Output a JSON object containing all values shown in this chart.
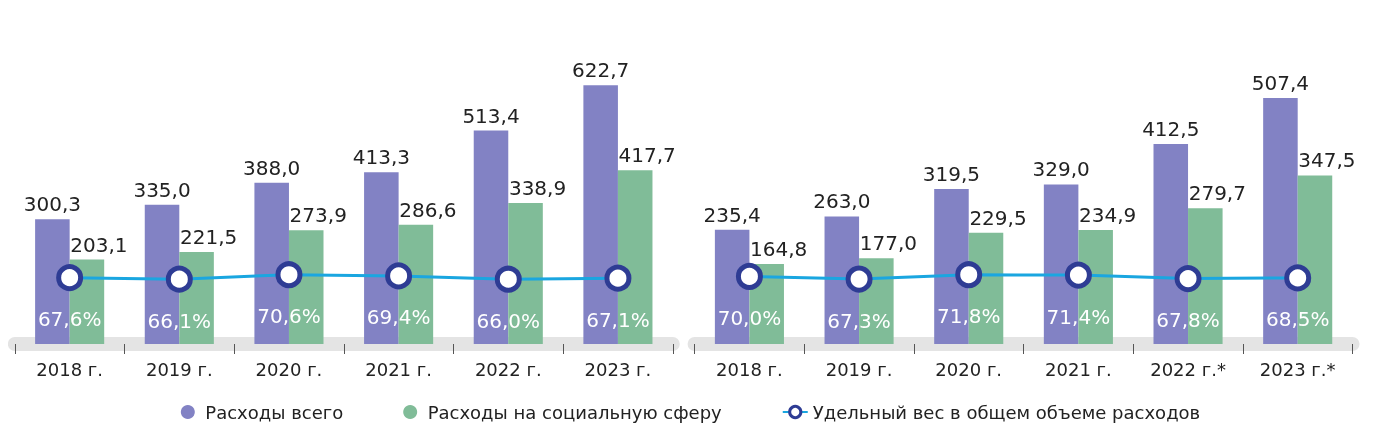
{
  "chart_data": [
    {
      "type": "bar",
      "categories": [
        "2018 г.",
        "2019 г.",
        "2020 г.",
        "2021 г.",
        "2022 г.",
        "2023 г."
      ],
      "series": [
        {
          "name": "Расходы всего",
          "color": "#8282c4",
          "values": [
            300.3,
            335.0,
            388.0,
            413.3,
            513.4,
            622.7
          ],
          "value_labels": [
            "300,3",
            "335,0",
            "388,0",
            "413,3",
            "513,4",
            "622,7"
          ]
        },
        {
          "name": "Расходы на социальную сферу",
          "color": "#80bc98",
          "values": [
            203.1,
            221.5,
            273.9,
            286.6,
            338.9,
            417.7
          ],
          "value_labels": [
            "203,1",
            "221,5",
            "273,9",
            "286,6",
            "338,9",
            "417,7"
          ]
        },
        {
          "name": "Удельный вес в общем объеме расходов",
          "type": "line",
          "axis": "y2",
          "color": "#1aa6e0",
          "values": [
            67.6,
            66.1,
            70.6,
            69.4,
            66.0,
            67.1
          ],
          "value_labels": [
            "67,6%",
            "66,1%",
            "70,6%",
            "69,4%",
            "66,0%",
            "67,1%"
          ]
        }
      ],
      "marker": "circle",
      "legend": "bottom"
    },
    {
      "type": "bar",
      "categories": [
        "2018 г.",
        "2019 г.",
        "2020 г.",
        "2021 г.",
        "2022 г.*",
        "2023 г.*"
      ],
      "series": [
        {
          "name": "Расходы всего",
          "color": "#8282c4",
          "values": [
            235.4,
            263.0,
            319.5,
            329.0,
            412.5,
            507.4
          ],
          "value_labels": [
            "235,4",
            "263,0",
            "319,5",
            "329,0",
            "412,5",
            "507,4"
          ]
        },
        {
          "name": "Расходы на социальную сферу",
          "color": "#80bc98",
          "values": [
            164.8,
            177.0,
            229.5,
            234.9,
            279.7,
            347.5
          ],
          "value_labels": [
            "164,8",
            "177,0",
            "229,5",
            "234,9",
            "279,7",
            "347,5"
          ]
        },
        {
          "name": "Удельный вес в общем объеме расходов",
          "type": "line",
          "axis": "y2",
          "color": "#1aa6e0",
          "values": [
            70.0,
            67.3,
            71.8,
            71.4,
            67.8,
            68.5
          ],
          "value_labels": [
            "70,0%",
            "67,3%",
            "71,8%",
            "71,4%",
            "67,8%",
            "68,5%"
          ]
        }
      ],
      "marker": "circle",
      "legend": "bottom"
    }
  ]
}
